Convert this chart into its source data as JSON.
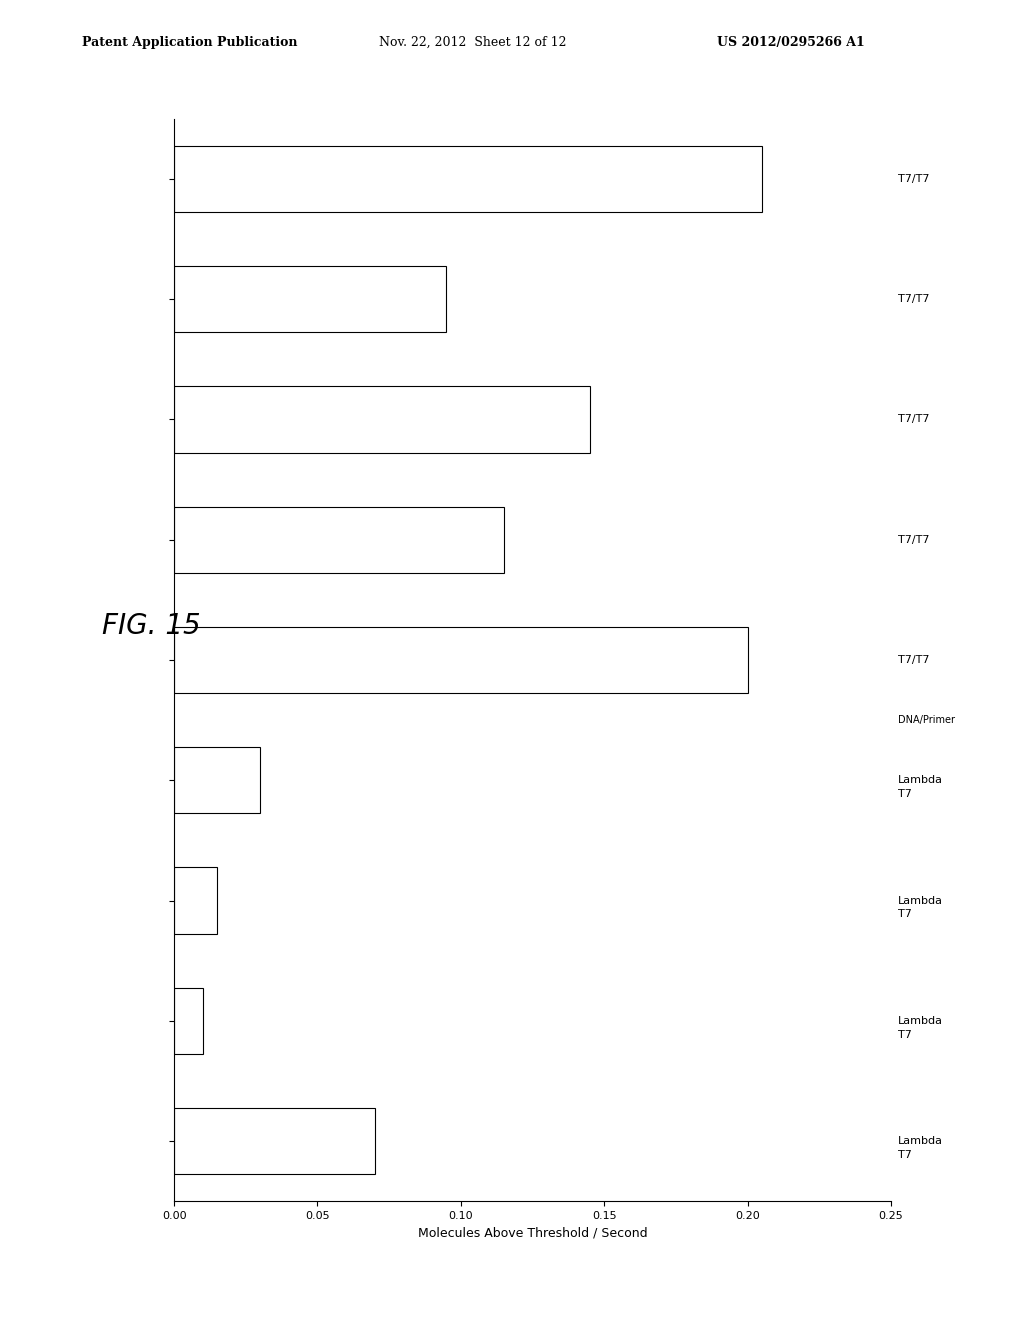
{
  "title": "FIG. 15",
  "xlabel": "Molecules Above Threshold / Second",
  "categories": [
    "T7/T7",
    "T7/T7",
    "T7/T7",
    "T7/T7",
    "T7/T7",
    "Lambda\nT7",
    "Lambda\nT7",
    "Lambda\nT7",
    "Lambda\nT7"
  ],
  "values": [
    0.205,
    0.095,
    0.145,
    0.115,
    0.2,
    0.03,
    0.015,
    0.01,
    0.07
  ],
  "xlim": [
    0,
    0.25
  ],
  "xticks": [
    0.0,
    0.05,
    0.1,
    0.15,
    0.2,
    0.25
  ],
  "xticklabels": [
    "0.00",
    "0.05",
    "0.10",
    "0.15",
    "0.20",
    "0.25"
  ],
  "bar_color": "#ffffff",
  "bar_edge_color": "#000000",
  "background_color": "#ffffff",
  "text_color": "#000000",
  "dna_primer_label": "DNA/Primer",
  "fig_label": "FIG. 15",
  "header_left": "Patent Application Publication",
  "header_mid": "Nov. 22, 2012  Sheet 12 of 12",
  "header_right": "US 2012/0295266 A1"
}
